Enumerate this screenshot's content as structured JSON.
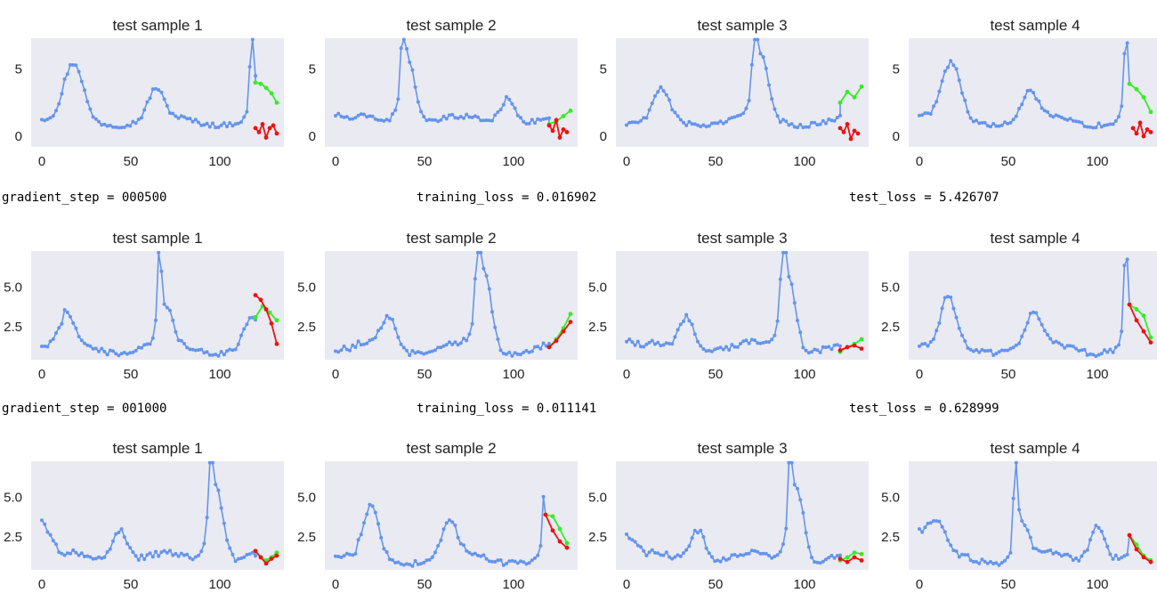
{
  "colors": {
    "input": "#6495ED",
    "target": "#33EE22",
    "prediction": "#EE1111",
    "plot_bg": "#EAEAF2"
  },
  "info_lines": [
    {
      "step": "gradient_step = 000500",
      "train": "training_loss = 0.016902",
      "test": "test_loss = 5.426707"
    },
    {
      "step": "gradient_step = 001000",
      "train": "training_loss = 0.011141",
      "test": "test_loss = 0.628999"
    }
  ],
  "chart_data": [
    {
      "type": "line",
      "title": "test sample 1",
      "xticks": [
        0,
        50,
        100
      ],
      "yticks": [
        0,
        5
      ],
      "ylim": [
        -0.8,
        7.3
      ],
      "xlim": [
        -6,
        136
      ],
      "peak": {
        "x": 118,
        "y": 6.8
      },
      "bumps": [
        [
          14,
          3.3
        ],
        [
          20,
          4.3
        ],
        [
          64,
          3.5
        ]
      ],
      "start_y": 1.3,
      "series": [
        {
          "name": "",
          "x": [
            120,
            123,
            126,
            129,
            132
          ],
          "y": [
            4.0,
            3.9,
            3.6,
            3.2,
            2.5
          ]
        },
        {
          "name": "",
          "x": [
            120,
            122,
            124,
            126,
            128,
            130,
            132
          ],
          "y": [
            0.6,
            0.3,
            0.9,
            -0.1,
            0.6,
            0.8,
            0.2
          ]
        }
      ]
    },
    {
      "type": "line",
      "title": "test sample 2",
      "xticks": [
        0,
        50,
        100
      ],
      "yticks": [
        0,
        5
      ],
      "ylim": [
        -0.8,
        7.3
      ],
      "xlim": [
        -6,
        136
      ],
      "peak": {
        "x": 38,
        "y": 6.8
      },
      "bumps": [
        [
          40,
          3.9
        ],
        [
          97,
          3.3
        ]
      ],
      "start_y": 1.6,
      "series": [
        {
          "name": "",
          "x": [
            120,
            124,
            128,
            132
          ],
          "y": [
            0.9,
            1.1,
            1.5,
            1.9
          ]
        },
        {
          "name": "",
          "x": [
            120,
            122,
            124,
            126,
            128,
            130
          ],
          "y": [
            0.8,
            0.4,
            1.2,
            -0.1,
            0.5,
            0.3
          ]
        }
      ]
    },
    {
      "type": "line",
      "title": "test sample 3",
      "xticks": [
        0,
        50,
        100
      ],
      "yticks": [
        0,
        5
      ],
      "ylim": [
        -0.8,
        7.3
      ],
      "xlim": [
        -6,
        136
      ],
      "peak": {
        "x": 72,
        "y": 6.8
      },
      "bumps": [
        [
          20,
          3.4
        ],
        [
          75,
          3.8
        ]
      ],
      "start_y": 0.9,
      "series": [
        {
          "name": "",
          "x": [
            120,
            124,
            128,
            132
          ],
          "y": [
            2.5,
            3.3,
            2.9,
            3.7
          ]
        },
        {
          "name": "",
          "x": [
            120,
            122,
            124,
            126,
            128,
            130
          ],
          "y": [
            0.6,
            0.3,
            0.9,
            -0.2,
            0.4,
            0.2
          ]
        }
      ]
    },
    {
      "type": "line",
      "title": "test sample 4",
      "xticks": [
        0,
        50,
        100
      ],
      "yticks": [
        0,
        5
      ],
      "ylim": [
        -0.8,
        7.3
      ],
      "xlim": [
        -6,
        136
      ],
      "peak": {
        "x": 116,
        "y": 6.8
      },
      "bumps": [
        [
          14,
          3.4
        ],
        [
          20,
          4.3
        ],
        [
          62,
          3.4
        ]
      ],
      "start_y": 1.6,
      "series": [
        {
          "name": "",
          "x": [
            118,
            122,
            126,
            130
          ],
          "y": [
            3.9,
            3.5,
            2.9,
            1.8
          ]
        },
        {
          "name": "",
          "x": [
            120,
            122,
            124,
            126,
            128,
            130
          ],
          "y": [
            0.6,
            0.2,
            1.0,
            0.0,
            0.5,
            0.3
          ]
        }
      ]
    },
    {
      "type": "line",
      "title": "test sample 1",
      "xticks": [
        0,
        50,
        100
      ],
      "yticks": [
        2.5,
        5.0
      ],
      "ylim": [
        0.4,
        7.3
      ],
      "xlim": [
        -6,
        136
      ],
      "peak": {
        "x": 66,
        "y": 6.8
      },
      "bumps": [
        [
          14,
          3.3
        ],
        [
          118,
          3.2
        ]
      ],
      "start_y": 1.3,
      "series": [
        {
          "name": "",
          "x": [
            120,
            124,
            128,
            132
          ],
          "y": [
            3.1,
            3.8,
            3.4,
            2.9
          ]
        },
        {
          "name": "",
          "x": [
            120,
            123,
            126,
            129,
            132
          ],
          "y": [
            4.5,
            4.2,
            3.6,
            2.7,
            1.4
          ]
        }
      ]
    },
    {
      "type": "line",
      "title": "test sample 2",
      "xticks": [
        0,
        50,
        100
      ],
      "yticks": [
        2.5,
        5.0
      ],
      "ylim": [
        0.4,
        7.3
      ],
      "xlim": [
        -6,
        136
      ],
      "peak": {
        "x": 80,
        "y": 6.8
      },
      "bumps": [
        [
          30,
          3.4
        ],
        [
          83,
          4.0
        ]
      ],
      "start_y": 1.0,
      "series": [
        {
          "name": "",
          "x": [
            120,
            124,
            128,
            132
          ],
          "y": [
            1.2,
            1.7,
            2.4,
            3.3
          ]
        },
        {
          "name": "",
          "x": [
            120,
            124,
            128,
            132
          ],
          "y": [
            1.2,
            1.6,
            2.2,
            2.8
          ]
        }
      ]
    },
    {
      "type": "line",
      "title": "test sample 3",
      "xticks": [
        0,
        50,
        100
      ],
      "yticks": [
        2.5,
        5.0
      ],
      "ylim": [
        0.4,
        7.3
      ],
      "xlim": [
        -6,
        136
      ],
      "peak": {
        "x": 88,
        "y": 6.8
      },
      "bumps": [
        [
          34,
          3.5
        ],
        [
          90,
          4.0
        ]
      ],
      "start_y": 1.6,
      "series": [
        {
          "name": "",
          "x": [
            120,
            124,
            128,
            132
          ],
          "y": [
            0.9,
            1.2,
            1.4,
            1.7
          ]
        },
        {
          "name": "",
          "x": [
            120,
            124,
            128,
            132
          ],
          "y": [
            1.0,
            1.2,
            1.3,
            1.1
          ]
        }
      ]
    },
    {
      "type": "line",
      "title": "test sample 4",
      "xticks": [
        0,
        50,
        100
      ],
      "yticks": [
        2.5,
        5.0
      ],
      "ylim": [
        0.4,
        7.3
      ],
      "xlim": [
        -6,
        136
      ],
      "peak": {
        "x": 116,
        "y": 6.8
      },
      "bumps": [
        [
          16,
          4.3
        ],
        [
          64,
          3.4
        ]
      ],
      "start_y": 1.3,
      "series": [
        {
          "name": "",
          "x": [
            118,
            122,
            126,
            130
          ],
          "y": [
            3.9,
            3.6,
            3.2,
            1.8
          ]
        },
        {
          "name": "",
          "x": [
            118,
            122,
            126,
            130
          ],
          "y": [
            3.9,
            2.9,
            2.2,
            1.5
          ]
        }
      ]
    },
    {
      "type": "line",
      "title": "test sample 1",
      "xticks": [
        0,
        50,
        100
      ],
      "yticks": [
        2.5,
        5.0
      ],
      "ylim": [
        0.4,
        7.3
      ],
      "xlim": [
        -6,
        136
      ],
      "peak": {
        "x": 95,
        "y": 6.8
      },
      "bumps": [
        [
          44,
          3.4
        ],
        [
          97,
          3.9
        ]
      ],
      "start_y": 3.6,
      "series": [
        {
          "name": "",
          "x": [
            120,
            123,
            126,
            129,
            132
          ],
          "y": [
            1.6,
            1.2,
            1.0,
            1.2,
            1.5
          ]
        },
        {
          "name": "",
          "x": [
            120,
            123,
            126,
            129,
            132
          ],
          "y": [
            1.6,
            1.2,
            0.8,
            1.1,
            1.3
          ]
        }
      ]
    },
    {
      "type": "line",
      "title": "test sample 2",
      "xticks": [
        0,
        50,
        100
      ],
      "yticks": [
        2.5,
        5.0
      ],
      "ylim": [
        0.4,
        7.3
      ],
      "xlim": [
        -6,
        136
      ],
      "peak": {
        "x": 118,
        "y": 6.8
      },
      "bumps": [
        [
          20,
          4.3
        ],
        [
          64,
          3.4
        ]
      ],
      "start_y": 1.3,
      "series": [
        {
          "name": "",
          "x": [
            118,
            122,
            126,
            130
          ],
          "y": [
            3.9,
            3.8,
            3.0,
            2.1
          ]
        },
        {
          "name": "",
          "x": [
            118,
            122,
            126,
            130
          ],
          "y": [
            3.9,
            2.9,
            2.2,
            1.8
          ]
        }
      ]
    },
    {
      "type": "line",
      "title": "test sample 3",
      "xticks": [
        0,
        50,
        100
      ],
      "yticks": [
        2.5,
        5.0
      ],
      "ylim": [
        0.4,
        7.3
      ],
      "xlim": [
        -6,
        136
      ],
      "peak": {
        "x": 92,
        "y": 6.8
      },
      "bumps": [
        [
          40,
          3.4
        ],
        [
          95,
          3.9
        ]
      ],
      "start_y": 2.7,
      "series": [
        {
          "name": "",
          "x": [
            120,
            124,
            128,
            132
          ],
          "y": [
            1.0,
            1.2,
            1.5,
            1.4
          ]
        },
        {
          "name": "",
          "x": [
            120,
            124,
            128,
            132
          ],
          "y": [
            1.1,
            0.9,
            1.2,
            1.0
          ]
        }
      ]
    },
    {
      "type": "line",
      "title": "test sample 4",
      "xticks": [
        0,
        50,
        100
      ],
      "yticks": [
        2.5,
        5.0
      ],
      "ylim": [
        0.4,
        7.3
      ],
      "xlim": [
        -6,
        136
      ],
      "peak": {
        "x": 54,
        "y": 6.8
      },
      "bumps": [
        [
          10,
          3.4
        ],
        [
          100,
          3.6
        ]
      ],
      "start_y": 2.9,
      "series": [
        {
          "name": "",
          "x": [
            118,
            122,
            126,
            130
          ],
          "y": [
            2.6,
            2.0,
            1.3,
            1.0
          ]
        },
        {
          "name": "",
          "x": [
            118,
            122,
            126,
            130
          ],
          "y": [
            2.6,
            1.7,
            1.2,
            0.9
          ]
        }
      ]
    }
  ]
}
